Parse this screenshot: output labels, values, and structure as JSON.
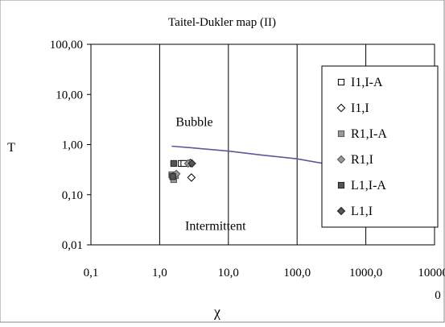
{
  "chart_data": {
    "type": "scatter",
    "title": "Taitel-Dukler map (II)",
    "xlabel": "χ",
    "ylabel": "T",
    "x_scale": "log",
    "y_scale": "log",
    "xlim": [
      0.1,
      10000
    ],
    "ylim": [
      0.01,
      100
    ],
    "x_ticks": [
      0.1,
      1,
      10,
      100,
      1000,
      10000
    ],
    "x_tick_labels": [
      "0,1",
      "1,0",
      "10,0",
      "100,0",
      "1000,0",
      "10000,\n0"
    ],
    "y_ticks": [
      0.01,
      0.1,
      1,
      10,
      100
    ],
    "y_tick_labels": [
      "0,01",
      "0,10",
      "1,00",
      "10,00",
      "100,00"
    ],
    "grid": "vertical-major",
    "legend_position": "right",
    "series": [
      {
        "name": "I1,I-A",
        "marker": "square-open",
        "color": "#000000",
        "points": [
          [
            2.05,
            0.42
          ],
          [
            2.25,
            0.42
          ]
        ]
      },
      {
        "name": "I1,I",
        "marker": "diamond-open",
        "color": "#000000",
        "points": [
          [
            2.9,
            0.22
          ],
          [
            2.8,
            0.43
          ]
        ]
      },
      {
        "name": "R1,I-A",
        "marker": "square-gray",
        "color": "#999999",
        "points": [
          [
            1.6,
            0.2
          ],
          [
            1.5,
            0.25
          ],
          [
            1.7,
            0.24
          ]
        ]
      },
      {
        "name": "R1,I",
        "marker": "diamond-gray",
        "color": "#999999",
        "points": [
          [
            1.6,
            0.24
          ],
          [
            1.75,
            0.26
          ],
          [
            2.6,
            0.42
          ]
        ]
      },
      {
        "name": "L1,I-A",
        "marker": "square-dark",
        "color": "#555555",
        "points": [
          [
            1.6,
            0.42
          ],
          [
            1.55,
            0.23
          ]
        ]
      },
      {
        "name": "L1,I",
        "marker": "diamond-dark",
        "color": "#555555",
        "points": [
          [
            2.95,
            0.42
          ]
        ]
      }
    ],
    "curve": {
      "color": "#5a5a9a",
      "points": [
        [
          1.5,
          0.93
        ],
        [
          3,
          0.86
        ],
        [
          10,
          0.74
        ],
        [
          30,
          0.62
        ],
        [
          100,
          0.52
        ],
        [
          300,
          0.4
        ],
        [
          1000,
          0.27
        ],
        [
          3000,
          0.18
        ],
        [
          10000,
          0.14
        ]
      ]
    },
    "annotations": [
      {
        "text": "Bubble",
        "x": 3.2,
        "y": 2.35
      },
      {
        "text": "Intermittent",
        "x": 6.5,
        "y": 0.02
      }
    ]
  }
}
